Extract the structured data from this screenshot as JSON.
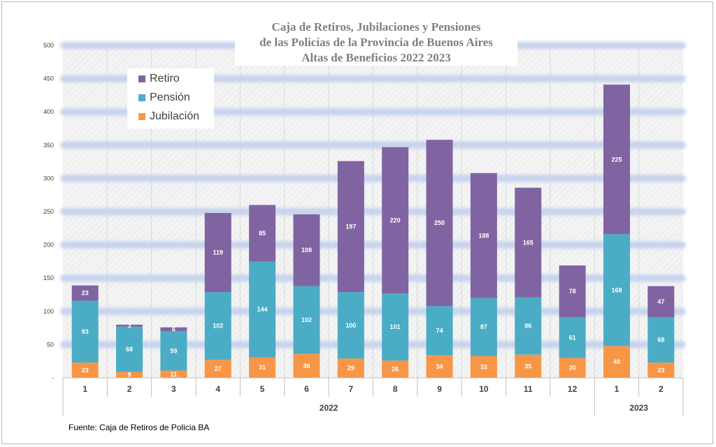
{
  "title_lines": [
    "Caja de Retiros, Jubilaciones y Pensiones",
    "de las Policías de la Provincia de Buenos Aires",
    "Altas de Beneficios 2022  2023"
  ],
  "source_note": "Fuente: Caja de Retiros de Policia BA",
  "colors": {
    "retiro": "#8064a2",
    "pension": "#4bacc6",
    "jubilacion": "#f79646",
    "gridline": "#c5d3ee",
    "plot_bg": "#f3f3f3"
  },
  "chart_data": {
    "type": "bar",
    "stacked": true,
    "title": "Caja de Retiros, Jubilaciones y Pensiones de las Policías de la Provincia de Buenos Aires Altas de Beneficios 2022  2023",
    "categories": [
      "1",
      "2",
      "3",
      "4",
      "5",
      "6",
      "7",
      "8",
      "9",
      "10",
      "11",
      "12",
      "1",
      "2"
    ],
    "groups": [
      {
        "label": "2022",
        "count": 12
      },
      {
        "label": "2023",
        "count": 2
      }
    ],
    "series": [
      {
        "name": "Jubilación",
        "values": [
          23,
          9,
          11,
          27,
          31,
          36,
          29,
          26,
          34,
          33,
          35,
          30,
          48,
          23
        ]
      },
      {
        "name": "Pensión",
        "values": [
          93,
          68,
          59,
          102,
          144,
          102,
          100,
          101,
          74,
          87,
          86,
          61,
          168,
          68
        ]
      },
      {
        "name": "Retiro",
        "values": [
          23,
          3,
          6,
          119,
          85,
          108,
          197,
          220,
          250,
          188,
          165,
          78,
          225,
          47
        ]
      }
    ],
    "legend_order": [
      "Retiro",
      "Pensión",
      "Jubilación"
    ],
    "y_ticks": [
      "-",
      "50",
      "100",
      "150",
      "200",
      "250",
      "300",
      "350",
      "400",
      "450",
      "500"
    ],
    "ylim": [
      0,
      500
    ],
    "grid": true,
    "legend_position": "top-left"
  }
}
